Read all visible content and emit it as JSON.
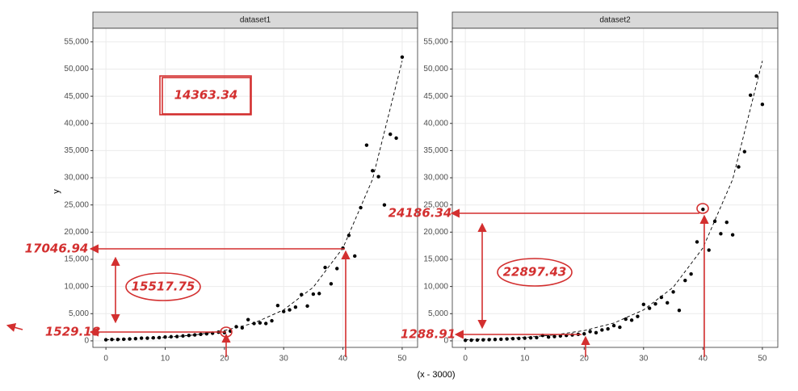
{
  "x_label": "(x - 3000)",
  "chart_data": [
    {
      "type": "scatter",
      "title": "dataset1",
      "y_label": "y",
      "color": "#000000",
      "x": [
        0,
        1,
        2,
        3,
        4,
        5,
        6,
        7,
        8,
        9,
        10,
        11,
        12,
        13,
        14,
        15,
        16,
        17,
        18,
        19,
        20,
        21,
        22,
        23,
        24,
        25,
        26,
        27,
        28,
        29,
        30,
        31,
        32,
        33,
        34,
        35,
        36,
        37,
        38,
        39,
        40,
        41,
        42,
        43,
        44,
        45,
        46,
        47,
        48,
        49,
        50
      ],
      "values": [
        200,
        250,
        250,
        300,
        350,
        400,
        500,
        500,
        550,
        600,
        700,
        750,
        800,
        900,
        1000,
        1100,
        1200,
        1300,
        1400,
        1600,
        1529.18,
        1800,
        2600,
        2400,
        3900,
        3200,
        3300,
        3200,
        3700,
        6500,
        5400,
        5700,
        6200,
        8500,
        6400,
        8600,
        8700,
        13500,
        10500,
        13300,
        17046.94,
        19400,
        15600,
        24500,
        36000,
        31300,
        30200,
        25000,
        38000,
        37300,
        52200
      ],
      "trend_x": [
        0,
        5,
        10,
        15,
        20,
        25,
        30,
        35,
        40,
        45,
        50
      ],
      "trend_values": [
        210,
        365,
        630,
        1090,
        1890,
        3280,
        5690,
        9870,
        17100,
        29700,
        51500
      ],
      "xlim": [
        -2.2,
        52.6
      ],
      "ylim": [
        -1200,
        57500
      ],
      "xticks": [
        0,
        10,
        20,
        30,
        40,
        50
      ],
      "yticks": [
        0,
        {
          "value": 5000,
          "label": "5,000"
        },
        {
          "value": 10000,
          "label": "10,000"
        },
        {
          "value": 15000,
          "label": "15,000"
        },
        {
          "value": 20000,
          "label": "20,000"
        },
        {
          "value": 25000,
          "label": "25,000"
        },
        {
          "value": 30000,
          "label": "30,000"
        },
        {
          "value": 35000,
          "label": "35,000"
        },
        {
          "value": 40000,
          "label": "40,000"
        },
        {
          "value": 45000,
          "label": "45,000"
        },
        {
          "value": 50000,
          "label": "50,000"
        },
        {
          "value": 55000,
          "label": "55,000"
        }
      ],
      "grid": true,
      "annotations": [
        "14363.34",
        "15517.75",
        "17046.94",
        "1529.18"
      ]
    },
    {
      "type": "scatter",
      "title": "dataset2",
      "color": "#000000",
      "x": [
        0,
        1,
        2,
        3,
        4,
        5,
        6,
        7,
        8,
        9,
        10,
        11,
        12,
        13,
        14,
        15,
        16,
        17,
        18,
        19,
        20,
        21,
        22,
        23,
        24,
        25,
        26,
        27,
        28,
        29,
        30,
        31,
        32,
        33,
        34,
        35,
        36,
        37,
        38,
        39,
        40,
        41,
        42,
        43,
        44,
        45,
        46,
        47,
        48,
        49,
        50
      ],
      "values": [
        100,
        120,
        150,
        180,
        220,
        250,
        300,
        350,
        400,
        450,
        500,
        550,
        600,
        1000,
        700,
        800,
        900,
        1000,
        1100,
        1200,
        1288.91,
        1700,
        1500,
        2000,
        2200,
        2800,
        2500,
        4000,
        3800,
        4500,
        6700,
        6000,
        6800,
        8000,
        7000,
        9000,
        5600,
        11100,
        12300,
        18200,
        24186.34,
        16700,
        22000,
        19700,
        21800,
        19500,
        32000,
        34800,
        45200,
        48700,
        43500
      ],
      "trend_x": [
        0,
        5,
        10,
        15,
        20,
        25,
        30,
        35,
        40,
        45,
        50
      ],
      "trend_values": [
        210,
        365,
        630,
        1090,
        1890,
        3280,
        5690,
        9870,
        17100,
        29700,
        51500
      ],
      "xlim": [
        -2.2,
        52.6
      ],
      "ylim": [
        -1200,
        57500
      ],
      "xticks": [
        0,
        10,
        20,
        30,
        40,
        50
      ],
      "yticks": [
        0,
        {
          "value": 5000,
          "label": "5,000"
        },
        {
          "value": 10000,
          "label": "10,000"
        },
        {
          "value": 15000,
          "label": "15,000"
        },
        {
          "value": 20000,
          "label": "20,000"
        },
        {
          "value": 25000,
          "label": "25,000"
        },
        {
          "value": 30000,
          "label": "30,000"
        },
        {
          "value": 35000,
          "label": "35,000"
        },
        {
          "value": 40000,
          "label": "40,000"
        },
        {
          "value": 45000,
          "label": "45,000"
        },
        {
          "value": 50000,
          "label": "50,000"
        },
        {
          "value": 55000,
          "label": "55,000"
        }
      ],
      "grid": true,
      "annotations": [
        "24186.34",
        "22897.43",
        "1288.91"
      ]
    }
  ]
}
